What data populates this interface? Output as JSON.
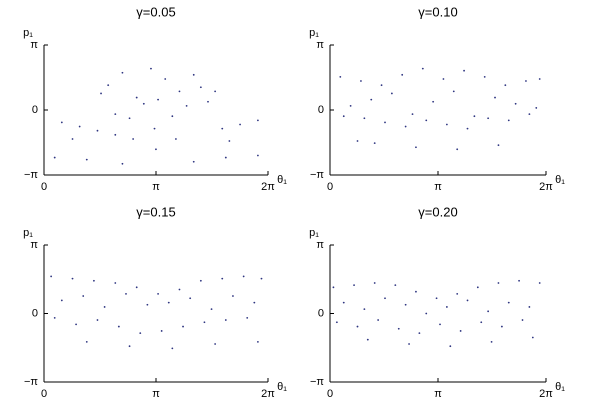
{
  "chart_data": [
    {
      "type": "scatter",
      "title": "γ=0.05",
      "y_label": "p₁",
      "x_label": "θ₁",
      "color": "#2e3580",
      "xlim": [
        0,
        6.2832
      ],
      "ylim": [
        -3.1416,
        3.1416
      ],
      "xticks": [
        {
          "value": 0,
          "label": "0"
        },
        {
          "value": 3.1416,
          "label": "π"
        },
        {
          "value": 6.2832,
          "label": "2π"
        }
      ],
      "yticks": [
        {
          "value": -3.1416,
          "label": "−π"
        },
        {
          "value": 0,
          "label": "0"
        },
        {
          "value": 3.1416,
          "label": "π"
        }
      ],
      "x": [
        1.8,
        2.2,
        2.6,
        3.0,
        3.4,
        3.8,
        4.2,
        4.6,
        2.0,
        2.8,
        3.6,
        4.4,
        1.6,
        2.4,
        3.2,
        4.0,
        4.8,
        0.5,
        1.0,
        1.5,
        2.0,
        5.0,
        5.5,
        6.0,
        0.8,
        2.5,
        3.1,
        3.7,
        5.2,
        0.3,
        1.2,
        2.2,
        4.2,
        5.1,
        6.0,
        3.14
      ],
      "y": [
        1.2,
        1.8,
        0.6,
        2.0,
        1.5,
        0.9,
        1.7,
        0.4,
        -0.2,
        0.3,
        -0.3,
        1.1,
        0.8,
        -0.4,
        0.5,
        0.2,
        0.9,
        -0.6,
        -0.8,
        -1.0,
        -1.2,
        -0.9,
        -0.7,
        -0.5,
        -1.4,
        -1.4,
        -0.9,
        -1.4,
        -1.5,
        -2.3,
        -2.4,
        -2.6,
        -2.5,
        -2.3,
        -2.2,
        -1.9
      ]
    },
    {
      "type": "scatter",
      "title": "γ=0.10",
      "y_label": "p₁",
      "x_label": "θ₁",
      "color": "#2e3580",
      "xlim": [
        0,
        6.2832
      ],
      "ylim": [
        -3.1416,
        3.1416
      ],
      "xticks": [
        {
          "value": 0,
          "label": "0"
        },
        {
          "value": 3.1416,
          "label": "π"
        },
        {
          "value": 6.2832,
          "label": "2π"
        }
      ],
      "yticks": [
        {
          "value": -3.1416,
          "label": "−π"
        },
        {
          "value": 0,
          "label": "0"
        },
        {
          "value": 3.1416,
          "label": "π"
        }
      ],
      "x": [
        0.3,
        0.9,
        1.5,
        2.1,
        2.7,
        3.3,
        3.9,
        4.5,
        5.1,
        5.7,
        6.1,
        0.6,
        1.2,
        1.8,
        2.4,
        3.0,
        3.6,
        4.2,
        4.8,
        5.4,
        6.0,
        0.4,
        1.0,
        1.6,
        2.2,
        2.8,
        3.4,
        4.0,
        4.6,
        5.2,
        5.8,
        1.3,
        2.5,
        3.7,
        4.9,
        0.8
      ],
      "y": [
        1.6,
        1.4,
        1.2,
        1.7,
        2.0,
        1.5,
        1.9,
        1.6,
        1.2,
        1.4,
        1.5,
        0.2,
        0.5,
        0.8,
        -0.2,
        0.4,
        0.9,
        -0.3,
        0.6,
        0.3,
        0.1,
        -0.3,
        -0.4,
        -0.6,
        -0.8,
        -0.5,
        -0.7,
        -0.9,
        -0.4,
        -0.5,
        -0.2,
        -1.6,
        -1.8,
        -1.9,
        -1.7,
        -1.5
      ]
    },
    {
      "type": "scatter",
      "title": "γ=0.15",
      "y_label": "p₁",
      "x_label": "θ₁",
      "color": "#2e3580",
      "xlim": [
        0,
        6.2832
      ],
      "ylim": [
        -3.1416,
        3.1416
      ],
      "xticks": [
        {
          "value": 0,
          "label": "0"
        },
        {
          "value": 3.1416,
          "label": "π"
        },
        {
          "value": 6.2832,
          "label": "2π"
        }
      ],
      "yticks": [
        {
          "value": -3.1416,
          "label": "−π"
        },
        {
          "value": 0,
          "label": "0"
        },
        {
          "value": 3.1416,
          "label": "π"
        }
      ],
      "x": [
        0.2,
        0.8,
        1.4,
        2.0,
        2.6,
        3.2,
        3.8,
        4.4,
        5.0,
        5.6,
        6.1,
        0.5,
        1.1,
        1.7,
        2.3,
        2.9,
        3.5,
        4.1,
        4.7,
        5.3,
        5.9,
        0.3,
        0.9,
        1.5,
        2.1,
        2.7,
        3.3,
        3.9,
        4.5,
        5.1,
        5.7,
        1.2,
        2.4,
        3.6,
        4.8,
        6.0
      ],
      "y": [
        1.7,
        1.6,
        1.5,
        1.4,
        1.2,
        0.9,
        1.1,
        1.5,
        1.6,
        1.7,
        1.6,
        0.6,
        0.8,
        0.3,
        0.9,
        0.4,
        0.5,
        0.7,
        0.2,
        0.8,
        0.5,
        -0.2,
        -0.5,
        -0.3,
        -0.6,
        -0.9,
        -0.8,
        -0.6,
        -0.4,
        -0.3,
        -0.2,
        -1.3,
        -1.5,
        -1.6,
        -1.4,
        -1.3
      ]
    },
    {
      "type": "scatter",
      "title": "γ=0.20",
      "y_label": "p₁",
      "x_label": "θ₁",
      "color": "#2e3580",
      "xlim": [
        0,
        6.2832
      ],
      "ylim": [
        -3.1416,
        3.1416
      ],
      "xticks": [
        {
          "value": 0,
          "label": "0"
        },
        {
          "value": 3.1416,
          "label": "π"
        },
        {
          "value": 6.2832,
          "label": "2π"
        }
      ],
      "yticks": [
        {
          "value": -3.1416,
          "label": "−π"
        },
        {
          "value": 0,
          "label": "0"
        },
        {
          "value": 3.1416,
          "label": "π"
        }
      ],
      "x": [
        0.1,
        0.7,
        1.3,
        1.9,
        2.5,
        3.1,
        3.7,
        4.3,
        4.9,
        5.5,
        6.1,
        0.4,
        1.0,
        1.6,
        2.2,
        2.8,
        3.4,
        4.0,
        4.6,
        5.2,
        5.8,
        0.2,
        0.8,
        1.4,
        2.0,
        2.6,
        3.2,
        3.8,
        4.4,
        5.0,
        5.6,
        1.1,
        2.3,
        3.5,
        4.7,
        5.9
      ],
      "y": [
        1.2,
        1.3,
        1.4,
        1.3,
        1.0,
        0.7,
        0.9,
        1.2,
        1.4,
        1.5,
        1.4,
        0.5,
        0.2,
        0.7,
        0.4,
        0.0,
        0.3,
        0.6,
        0.1,
        0.5,
        0.3,
        -0.4,
        -0.6,
        -0.3,
        -0.7,
        -0.9,
        -0.5,
        -0.8,
        -0.4,
        -0.6,
        -0.3,
        -1.2,
        -1.4,
        -1.5,
        -1.3,
        -1.1
      ]
    }
  ]
}
